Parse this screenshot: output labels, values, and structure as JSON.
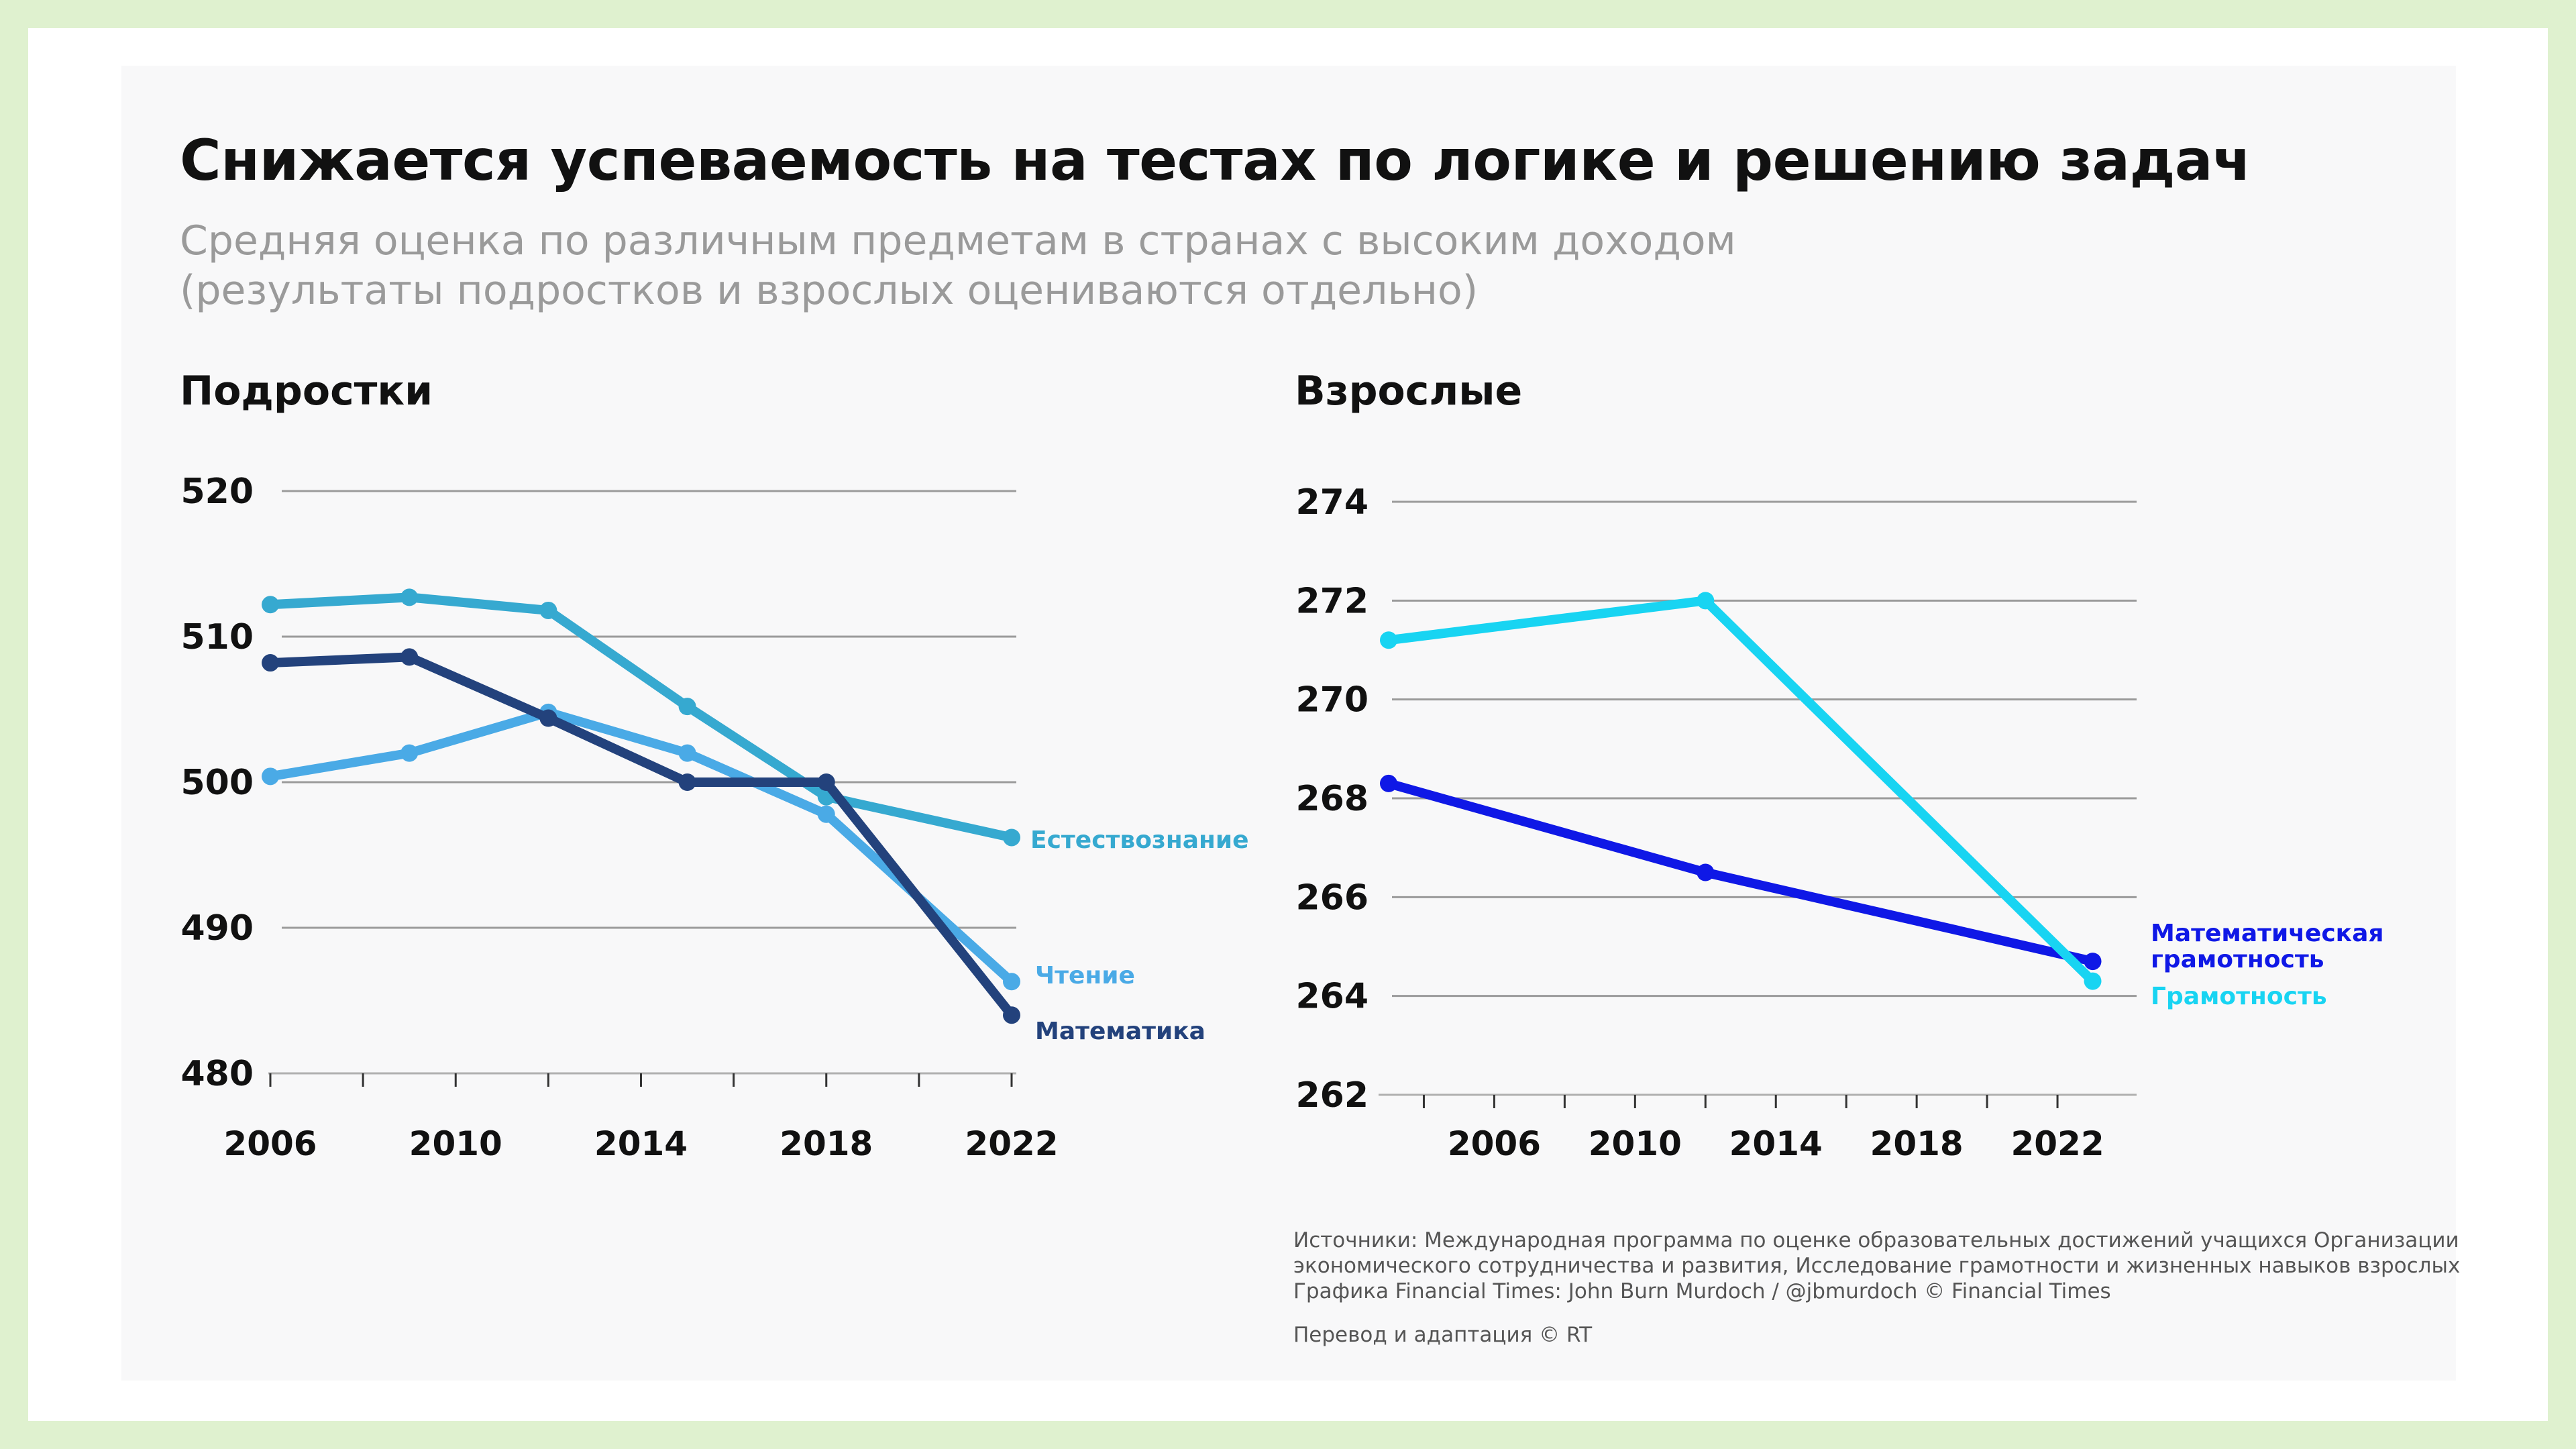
{
  "title": "Снижается успеваемость на тестах по логике и решению задач",
  "subtitle_line1": "Средняя оценка по различным предметам в странах с высоким доходом",
  "subtitle_line2": "(результаты подростков и взрослых оцениваются отдельно)",
  "colors": {
    "science": "#36a9d0",
    "reading": "#4aaae6",
    "math_teens": "#23427c",
    "adult_numeracy": "#0f18e6",
    "adult_literacy": "#18d4f2"
  },
  "chart_data": [
    {
      "type": "line",
      "title": "Подростки",
      "ylim": [
        480,
        520
      ],
      "y_ticks": [
        480,
        490,
        500,
        510,
        520
      ],
      "x_ticks": [
        2006,
        2010,
        2014,
        2018,
        2022
      ],
      "xlim": [
        2006,
        2022
      ],
      "x_minor_ticks": [
        2006,
        2008,
        2010,
        2012,
        2014,
        2016,
        2018,
        2020,
        2022
      ],
      "series": [
        {
          "name": "Естествознание",
          "color": "#36a9d0",
          "x": [
            2006,
            2009,
            2012,
            2015,
            2018,
            2022
          ],
          "values": [
            512.2,
            512.7,
            511.8,
            505.2,
            499.0,
            496.2
          ]
        },
        {
          "name": "Чтение",
          "color": "#4aaae6",
          "x": [
            2006,
            2009,
            2012,
            2015,
            2018,
            2022
          ],
          "values": [
            500.4,
            502.0,
            504.8,
            502.0,
            497.8,
            486.3
          ]
        },
        {
          "name": "Математика",
          "color": "#23427c",
          "x": [
            2006,
            2009,
            2012,
            2015,
            2018,
            2022
          ],
          "values": [
            508.2,
            508.6,
            504.4,
            500.0,
            500.0,
            484.0
          ]
        }
      ]
    },
    {
      "type": "line",
      "title": "Взрослые",
      "ylim": [
        262,
        274
      ],
      "y_ticks": [
        262,
        264,
        266,
        268,
        270,
        272,
        274
      ],
      "x_ticks": [
        2006,
        2010,
        2014,
        2018,
        2022
      ],
      "xlim": [
        2003,
        2024
      ],
      "x_minor_ticks": [
        2004,
        2006,
        2008,
        2010,
        2012,
        2014,
        2016,
        2018,
        2020,
        2022
      ],
      "series": [
        {
          "name": "Математическая грамотность",
          "color": "#0f18e6",
          "x": [
            2003,
            2012,
            2023
          ],
          "values": [
            268.3,
            266.5,
            264.7
          ]
        },
        {
          "name": "Грамотность",
          "color": "#18d4f2",
          "x": [
            2003,
            2012,
            2023
          ],
          "values": [
            271.2,
            272.0,
            264.3
          ]
        }
      ]
    }
  ],
  "labels": {
    "science": "Естествознание",
    "reading": "Чтение",
    "math": "Математика",
    "numeracy_line1": "Математическая",
    "numeracy_line2": "грамотность",
    "literacy": "Грамотность"
  },
  "source_lines": [
    "Источники: Международная программа по оценке образовательных достижений учащихся Организации",
    "экономического сотрудничества и развития, Исследование грамотности и жизненных навыков взрослых",
    "Графика Financial Times: John Burn Murdoch / @jbmurdoch © Financial Times"
  ],
  "credit": "Перевод и адаптация © RT"
}
